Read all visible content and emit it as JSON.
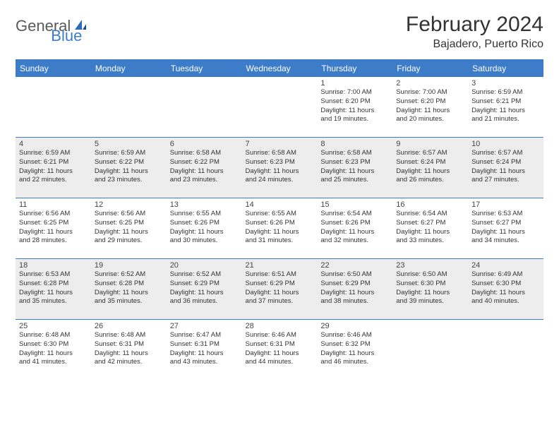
{
  "logo": {
    "general": "General",
    "blue": "Blue"
  },
  "title": "February 2024",
  "location": "Bajadero, Puerto Rico",
  "colors": {
    "accent": "#3d7cc9",
    "shaded_row": "#ededed",
    "text": "#333333",
    "logo_gray": "#5a5a5a"
  },
  "day_headers": [
    "Sunday",
    "Monday",
    "Tuesday",
    "Wednesday",
    "Thursday",
    "Friday",
    "Saturday"
  ],
  "weeks": [
    {
      "shaded": false,
      "days": [
        null,
        null,
        null,
        null,
        {
          "n": "1",
          "rise": "Sunrise: 7:00 AM",
          "set": "Sunset: 6:20 PM",
          "dl1": "Daylight: 11 hours",
          "dl2": "and 19 minutes."
        },
        {
          "n": "2",
          "rise": "Sunrise: 7:00 AM",
          "set": "Sunset: 6:20 PM",
          "dl1": "Daylight: 11 hours",
          "dl2": "and 20 minutes."
        },
        {
          "n": "3",
          "rise": "Sunrise: 6:59 AM",
          "set": "Sunset: 6:21 PM",
          "dl1": "Daylight: 11 hours",
          "dl2": "and 21 minutes."
        }
      ]
    },
    {
      "shaded": true,
      "days": [
        {
          "n": "4",
          "rise": "Sunrise: 6:59 AM",
          "set": "Sunset: 6:21 PM",
          "dl1": "Daylight: 11 hours",
          "dl2": "and 22 minutes."
        },
        {
          "n": "5",
          "rise": "Sunrise: 6:59 AM",
          "set": "Sunset: 6:22 PM",
          "dl1": "Daylight: 11 hours",
          "dl2": "and 23 minutes."
        },
        {
          "n": "6",
          "rise": "Sunrise: 6:58 AM",
          "set": "Sunset: 6:22 PM",
          "dl1": "Daylight: 11 hours",
          "dl2": "and 23 minutes."
        },
        {
          "n": "7",
          "rise": "Sunrise: 6:58 AM",
          "set": "Sunset: 6:23 PM",
          "dl1": "Daylight: 11 hours",
          "dl2": "and 24 minutes."
        },
        {
          "n": "8",
          "rise": "Sunrise: 6:58 AM",
          "set": "Sunset: 6:23 PM",
          "dl1": "Daylight: 11 hours",
          "dl2": "and 25 minutes."
        },
        {
          "n": "9",
          "rise": "Sunrise: 6:57 AM",
          "set": "Sunset: 6:24 PM",
          "dl1": "Daylight: 11 hours",
          "dl2": "and 26 minutes."
        },
        {
          "n": "10",
          "rise": "Sunrise: 6:57 AM",
          "set": "Sunset: 6:24 PM",
          "dl1": "Daylight: 11 hours",
          "dl2": "and 27 minutes."
        }
      ]
    },
    {
      "shaded": false,
      "days": [
        {
          "n": "11",
          "rise": "Sunrise: 6:56 AM",
          "set": "Sunset: 6:25 PM",
          "dl1": "Daylight: 11 hours",
          "dl2": "and 28 minutes."
        },
        {
          "n": "12",
          "rise": "Sunrise: 6:56 AM",
          "set": "Sunset: 6:25 PM",
          "dl1": "Daylight: 11 hours",
          "dl2": "and 29 minutes."
        },
        {
          "n": "13",
          "rise": "Sunrise: 6:55 AM",
          "set": "Sunset: 6:26 PM",
          "dl1": "Daylight: 11 hours",
          "dl2": "and 30 minutes."
        },
        {
          "n": "14",
          "rise": "Sunrise: 6:55 AM",
          "set": "Sunset: 6:26 PM",
          "dl1": "Daylight: 11 hours",
          "dl2": "and 31 minutes."
        },
        {
          "n": "15",
          "rise": "Sunrise: 6:54 AM",
          "set": "Sunset: 6:26 PM",
          "dl1": "Daylight: 11 hours",
          "dl2": "and 32 minutes."
        },
        {
          "n": "16",
          "rise": "Sunrise: 6:54 AM",
          "set": "Sunset: 6:27 PM",
          "dl1": "Daylight: 11 hours",
          "dl2": "and 33 minutes."
        },
        {
          "n": "17",
          "rise": "Sunrise: 6:53 AM",
          "set": "Sunset: 6:27 PM",
          "dl1": "Daylight: 11 hours",
          "dl2": "and 34 minutes."
        }
      ]
    },
    {
      "shaded": true,
      "days": [
        {
          "n": "18",
          "rise": "Sunrise: 6:53 AM",
          "set": "Sunset: 6:28 PM",
          "dl1": "Daylight: 11 hours",
          "dl2": "and 35 minutes."
        },
        {
          "n": "19",
          "rise": "Sunrise: 6:52 AM",
          "set": "Sunset: 6:28 PM",
          "dl1": "Daylight: 11 hours",
          "dl2": "and 35 minutes."
        },
        {
          "n": "20",
          "rise": "Sunrise: 6:52 AM",
          "set": "Sunset: 6:29 PM",
          "dl1": "Daylight: 11 hours",
          "dl2": "and 36 minutes."
        },
        {
          "n": "21",
          "rise": "Sunrise: 6:51 AM",
          "set": "Sunset: 6:29 PM",
          "dl1": "Daylight: 11 hours",
          "dl2": "and 37 minutes."
        },
        {
          "n": "22",
          "rise": "Sunrise: 6:50 AM",
          "set": "Sunset: 6:29 PM",
          "dl1": "Daylight: 11 hours",
          "dl2": "and 38 minutes."
        },
        {
          "n": "23",
          "rise": "Sunrise: 6:50 AM",
          "set": "Sunset: 6:30 PM",
          "dl1": "Daylight: 11 hours",
          "dl2": "and 39 minutes."
        },
        {
          "n": "24",
          "rise": "Sunrise: 6:49 AM",
          "set": "Sunset: 6:30 PM",
          "dl1": "Daylight: 11 hours",
          "dl2": "and 40 minutes."
        }
      ]
    },
    {
      "shaded": false,
      "days": [
        {
          "n": "25",
          "rise": "Sunrise: 6:48 AM",
          "set": "Sunset: 6:30 PM",
          "dl1": "Daylight: 11 hours",
          "dl2": "and 41 minutes."
        },
        {
          "n": "26",
          "rise": "Sunrise: 6:48 AM",
          "set": "Sunset: 6:31 PM",
          "dl1": "Daylight: 11 hours",
          "dl2": "and 42 minutes."
        },
        {
          "n": "27",
          "rise": "Sunrise: 6:47 AM",
          "set": "Sunset: 6:31 PM",
          "dl1": "Daylight: 11 hours",
          "dl2": "and 43 minutes."
        },
        {
          "n": "28",
          "rise": "Sunrise: 6:46 AM",
          "set": "Sunset: 6:31 PM",
          "dl1": "Daylight: 11 hours",
          "dl2": "and 44 minutes."
        },
        {
          "n": "29",
          "rise": "Sunrise: 6:46 AM",
          "set": "Sunset: 6:32 PM",
          "dl1": "Daylight: 11 hours",
          "dl2": "and 46 minutes."
        },
        null,
        null
      ]
    }
  ]
}
